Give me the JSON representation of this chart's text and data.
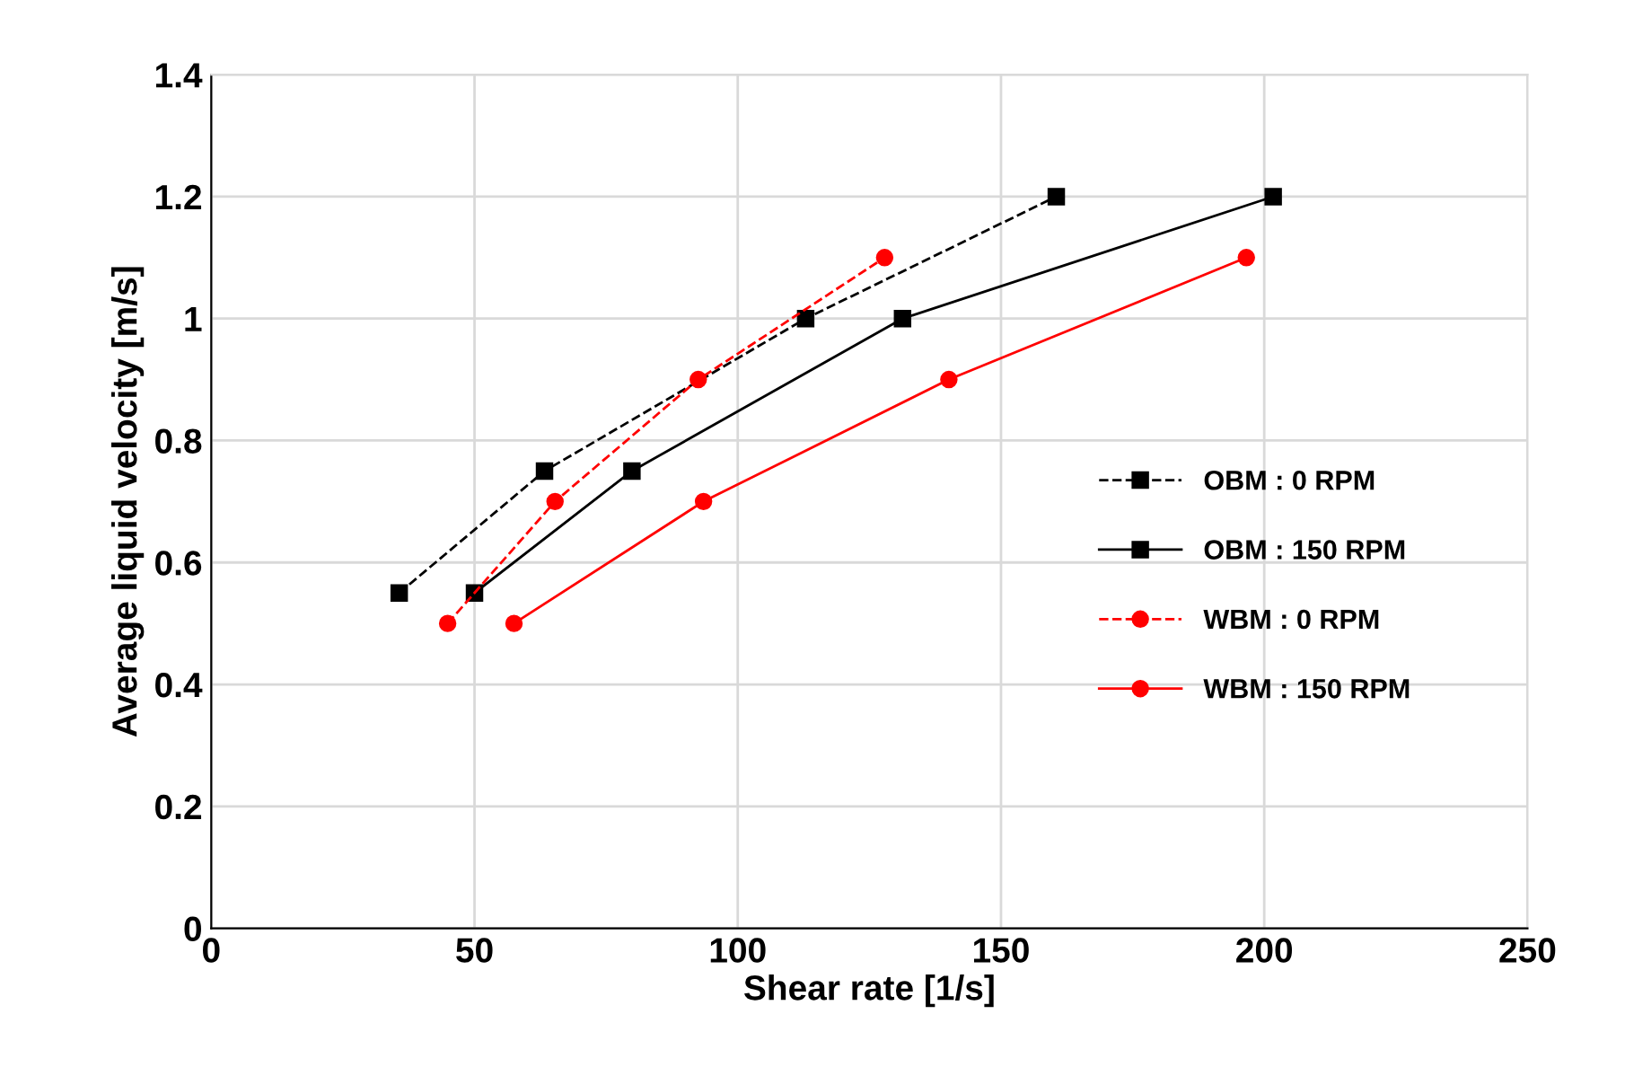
{
  "chart_data": {
    "type": "line",
    "xlabel": "Shear rate [1/s]",
    "ylabel": "Average liquid velocity [m/s]",
    "xlim": [
      0,
      250
    ],
    "xticks": [
      0,
      50,
      100,
      150,
      200,
      250
    ],
    "ylim": [
      0,
      1.4
    ],
    "yticks": [
      {
        "value": 0,
        "label": "0"
      },
      {
        "value": 0.2,
        "label": "0.2"
      },
      {
        "value": 0.4,
        "label": "0.4"
      },
      {
        "value": 0.6,
        "label": "0.6"
      },
      {
        "value": 0.8,
        "label": "0.8"
      },
      {
        "value": 1,
        "label": "1"
      },
      {
        "value": 1.2,
        "label": "1.2"
      },
      {
        "value": 1.4,
        "label": "1.4"
      }
    ],
    "grid": true,
    "legend": "right",
    "series": [
      {
        "name": "OBM : 0 RPM",
        "color": "#000000",
        "marker": "square",
        "line_style": "dashed",
        "x": [
          35.7,
          63.3,
          112.9,
          160.5
        ],
        "values": [
          0.55,
          0.75,
          1.0,
          1.2
        ]
      },
      {
        "name": "OBM : 150 RPM",
        "color": "#000000",
        "marker": "square",
        "line_style": "solid",
        "x": [
          50,
          79.9,
          131.3,
          201.7
        ],
        "values": [
          0.55,
          0.75,
          1.0,
          1.2
        ]
      },
      {
        "name": "WBM : 0 RPM",
        "color": "#ff0000",
        "marker": "circle",
        "line_style": "dashed",
        "x": [
          44.9,
          65.3,
          92.5,
          127.9
        ],
        "values": [
          0.5,
          0.7,
          0.9,
          1.1
        ]
      },
      {
        "name": "WBM : 150 RPM",
        "color": "#ff0000",
        "marker": "circle",
        "line_style": "solid",
        "x": [
          57.5,
          93.5,
          140.1,
          196.6
        ],
        "values": [
          0.5,
          0.7,
          0.9,
          1.1
        ]
      }
    ]
  }
}
